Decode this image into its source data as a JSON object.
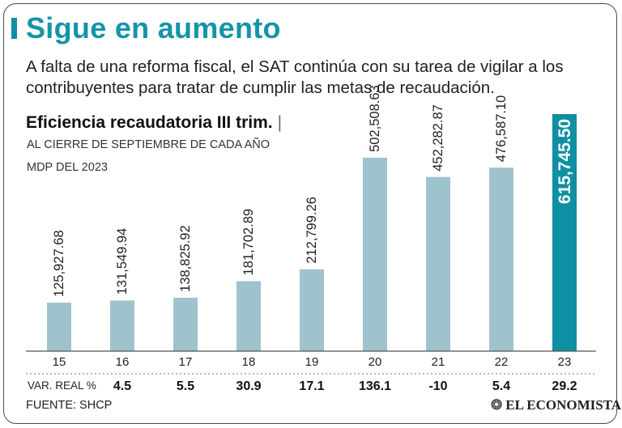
{
  "headline": "Sigue en aumento",
  "intro": "A falta de una reforma fiscal, el SAT continúa con su tarea de vigilar a los contribuyentes para tratar de cumplir las metas de recaudación.",
  "chart_data": {
    "type": "bar",
    "title": "Eficiencia recaudatoria III trim.",
    "title_separator": "|",
    "subtitle_1": "AL CIERRE DE SEPTIEMBRE DE CADA AÑO",
    "subtitle_2": "MDP DEL 2023",
    "categories": [
      "15",
      "16",
      "17",
      "18",
      "19",
      "20",
      "21",
      "22",
      "23"
    ],
    "values": [
      125927.68,
      131549.94,
      138825.92,
      181702.89,
      212799.26,
      502508.63,
      452282.87,
      476587.1,
      615745.5
    ],
    "value_labels": [
      "125,927.68",
      "131,549.94",
      "138,825.92",
      "181,702.89",
      "212,799.26",
      "502,508.63",
      "452,282.87",
      "476,587.10",
      "615,745.50"
    ],
    "variation_label": "VAR. REAL %",
    "variation": [
      "",
      "4.5",
      "5.5",
      "30.9",
      "17.1",
      "136.1",
      "-10",
      "5.4",
      "29.2"
    ],
    "highlight_index": 8,
    "colors": {
      "bar": "#9fc3cc",
      "highlight": "#0f8fa3",
      "axis": "#555555",
      "accent": "#1494a8"
    }
  },
  "source": "FUENTE: SHCP",
  "brand": "EL ECONOMISTA",
  "brand_mark": "❂"
}
